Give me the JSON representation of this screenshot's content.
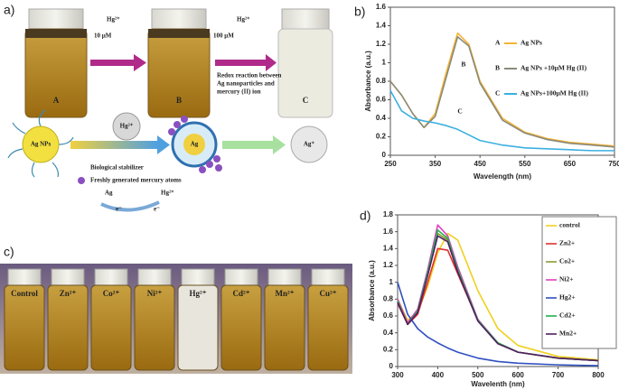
{
  "figure": {
    "panel_a": {
      "label": "a)",
      "vials": [
        "A",
        "B",
        "C"
      ],
      "step1": {
        "ion": "Hg²⁺",
        "amount": "10 μM"
      },
      "step2": {
        "ion": "Hg²⁺",
        "amount": "100 μM",
        "note": [
          "Redox reaction between",
          "Ag nanoparticles and",
          "mercury (II) ion"
        ]
      },
      "scheme": {
        "np": "Ag NPs",
        "ion": "Hg²⁺",
        "core": "Ag",
        "product": "Ag⁺",
        "stabilizer": "Biological stabilizer",
        "atoms": "Freshly generated mercury atoms",
        "donor": "Ag",
        "acceptor": "Hg²⁺",
        "electron1": "e⁻",
        "electron2": "e⁻"
      }
    },
    "panel_c": {
      "label": "c)",
      "vials": [
        "Control",
        "Zn²⁺",
        "Co²⁺",
        "Ni²⁺",
        "Hg²⁺",
        "Cd²⁺",
        "Mn²⁺",
        "Cu²⁺"
      ]
    }
  },
  "chart_data": [
    {
      "type": "line",
      "title": "b)",
      "xlabel": "Wavelength (nm)",
      "ylabel": "Absorbance (a.u.)",
      "x": [
        250,
        275,
        300,
        325,
        350,
        375,
        400,
        425,
        450,
        500,
        550,
        600,
        650,
        700,
        750
      ],
      "xlim": [
        250,
        750
      ],
      "xticks": [
        250,
        350,
        450,
        550,
        650,
        750
      ],
      "ylim": [
        0,
        1.6
      ],
      "yticks": [
        0,
        0.2,
        0.4,
        0.6,
        0.8,
        1,
        1.2,
        1.4,
        1.6
      ],
      "legend": "right",
      "legend_box": false,
      "annotations": [
        "B",
        "C"
      ],
      "series": [
        {
          "key": "A",
          "name": "Ag NPs",
          "color": "#f5b335",
          "values": [
            0.8,
            0.65,
            0.45,
            0.3,
            0.45,
            0.9,
            1.32,
            1.2,
            0.8,
            0.4,
            0.25,
            0.18,
            0.14,
            0.12,
            0.1
          ]
        },
        {
          "key": "B",
          "name": "Ag NPs +10μM Hg (II)",
          "color": "#8a8a7a",
          "values": [
            0.8,
            0.65,
            0.45,
            0.3,
            0.42,
            0.85,
            1.28,
            1.18,
            0.78,
            0.38,
            0.24,
            0.17,
            0.13,
            0.11,
            0.09
          ]
        },
        {
          "key": "C",
          "name": "Ag NPs+100μM Hg (II)",
          "color": "#3bb0e0",
          "values": [
            0.7,
            0.48,
            0.4,
            0.37,
            0.35,
            0.32,
            0.28,
            0.22,
            0.16,
            0.11,
            0.08,
            0.07,
            0.06,
            0.05,
            0.05
          ]
        }
      ]
    },
    {
      "type": "line",
      "title": "d)",
      "xlabel": "Wavelenth (nm)",
      "ylabel": "Absorbance (a.u.)",
      "x": [
        300,
        325,
        350,
        375,
        400,
        425,
        450,
        500,
        550,
        600,
        700,
        800
      ],
      "xlim": [
        300,
        800
      ],
      "xticks": [
        300,
        400,
        500,
        600,
        700,
        800
      ],
      "ylim": [
        0,
        1.8
      ],
      "yticks": [
        0,
        0.2,
        0.4,
        0.6,
        0.8,
        1,
        1.2,
        1.4,
        1.6,
        1.8
      ],
      "legend": "upper right",
      "legend_box": true,
      "series": [
        {
          "name": "control",
          "color": "#f0d020",
          "values": [
            0.8,
            0.55,
            0.65,
            0.95,
            1.35,
            1.58,
            1.5,
            0.9,
            0.45,
            0.25,
            0.12,
            0.08
          ]
        },
        {
          "name": "Zn2+",
          "color": "#e03030",
          "values": [
            0.75,
            0.5,
            0.62,
            1.0,
            1.4,
            1.38,
            1.1,
            0.55,
            0.28,
            0.17,
            0.1,
            0.07
          ]
        },
        {
          "name": "Co2+",
          "color": "#8a9a30",
          "values": [
            0.78,
            0.5,
            0.65,
            1.1,
            1.58,
            1.5,
            1.15,
            0.55,
            0.28,
            0.17,
            0.1,
            0.07
          ]
        },
        {
          "name": "Ni2+",
          "color": "#e040c0",
          "values": [
            0.8,
            0.52,
            0.68,
            1.15,
            1.68,
            1.55,
            1.18,
            0.56,
            0.28,
            0.17,
            0.1,
            0.07
          ]
        },
        {
          "name": "Hg2+",
          "color": "#3050c0",
          "values": [
            1.0,
            0.62,
            0.45,
            0.35,
            0.28,
            0.22,
            0.17,
            0.1,
            0.06,
            0.04,
            0.02,
            0.01
          ]
        },
        {
          "name": "Cd2+",
          "color": "#20b050",
          "values": [
            0.78,
            0.5,
            0.66,
            1.12,
            1.62,
            1.52,
            1.15,
            0.55,
            0.28,
            0.17,
            0.1,
            0.07
          ]
        },
        {
          "name": "Mn2+",
          "color": "#502060",
          "values": [
            0.76,
            0.5,
            0.64,
            1.08,
            1.55,
            1.48,
            1.12,
            0.54,
            0.27,
            0.17,
            0.1,
            0.07
          ]
        }
      ]
    }
  ]
}
